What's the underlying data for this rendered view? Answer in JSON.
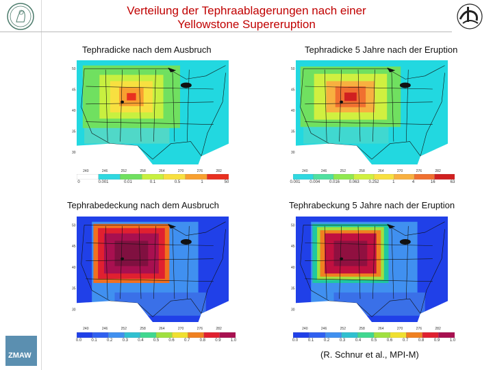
{
  "title": {
    "line1": "Verteilung der Tephraablagerungen nach einer",
    "line2": "Yellowstone Supereruption"
  },
  "panels": [
    {
      "id": "thickness-after",
      "subtitle": "Tephradicke nach dem Ausbruch",
      "colorbar_labels": [
        "0",
        "0.001",
        "0.01",
        "0.1",
        "0.5",
        "1",
        "50"
      ],
      "lon_ticks": [
        "240",
        "246",
        "252",
        "258",
        "264",
        "270",
        "276",
        "282"
      ],
      "lat_ticks": [
        "50",
        "45",
        "40",
        "35",
        "30"
      ]
    },
    {
      "id": "thickness-5yr",
      "subtitle": "Tephradicke 5 Jahre nach der Eruption",
      "colorbar_labels": [
        "0.001",
        "0.004",
        "0.016",
        "0.063",
        "0.252",
        "1",
        "4",
        "16",
        "63"
      ],
      "lon_ticks": [
        "240",
        "246",
        "252",
        "258",
        "264",
        "270",
        "276",
        "282"
      ],
      "lat_ticks": [
        "50",
        "45",
        "40",
        "35",
        "30"
      ]
    },
    {
      "id": "coverage-after",
      "subtitle": "Tephrabedeckung  nach dem Ausbruch",
      "colorbar_labels": [
        "0.0",
        "0.1",
        "0.2",
        "0.3",
        "0.4",
        "0.5",
        "0.6",
        "0.7",
        "0.8",
        "0.9",
        "1.0"
      ],
      "lon_ticks": [
        "240",
        "246",
        "252",
        "258",
        "264",
        "270",
        "276",
        "282"
      ],
      "lat_ticks": [
        "50",
        "45",
        "40",
        "35",
        "30"
      ]
    },
    {
      "id": "coverage-5yr",
      "subtitle": "Tephrabeckung 5 Jahre nach der Eruption",
      "colorbar_labels": [
        "0.0",
        "0.1",
        "0.2",
        "0.3",
        "0.4",
        "0.5",
        "0.6",
        "0.7",
        "0.8",
        "0.9",
        "1.0"
      ],
      "lon_ticks": [
        "240",
        "246",
        "252",
        "258",
        "264",
        "270",
        "276",
        "282"
      ],
      "lat_ticks": [
        "50",
        "45",
        "40",
        "35",
        "30"
      ]
    }
  ],
  "credit": "(R. Schnur et al., MPI-M)",
  "colors": {
    "title": "#c00000",
    "ocean_thickness": "#22d8e0",
    "ocean_coverage": "#2040e8",
    "land_white": "#ffffff"
  }
}
